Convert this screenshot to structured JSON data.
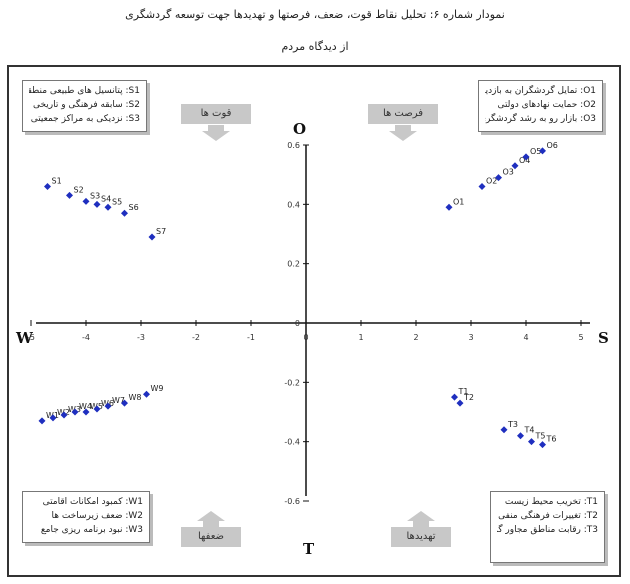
{
  "title_line1": "نمودار شماره ۶: تحلیل نقاط قوت، ضعف، فرصتها و تهدیدها جهت توسعه گردشگری",
  "title_line2": "از دیدگاه مردم",
  "chart_data": {
    "type": "scatter",
    "xlim": [
      -6,
      6
    ],
    "ylim": [
      -0.6,
      0.6
    ],
    "x_ticks": [
      "-5",
      "-4",
      "-3",
      "-2",
      "-1",
      "0",
      "1",
      "2",
      "3",
      "4",
      "5"
    ],
    "y_ticks": [
      "0.6",
      "0.4",
      "0.2",
      "0",
      "-0.2",
      "-0.4",
      "-0.6"
    ],
    "axis_letters": {
      "left": "W",
      "right": "S",
      "top": "O",
      "bottom": "T"
    },
    "quadrant_labels": {
      "strengths": "قوت ها",
      "opportunities": "فرصت ها",
      "weaknesses": "ضعفها",
      "threats": "تهدیدها"
    },
    "series": [
      {
        "name": "strengths",
        "color": "#1f2fbf",
        "points": [
          {
            "x": -4.7,
            "y": 0.46,
            "label": "S1"
          },
          {
            "x": -4.3,
            "y": 0.43,
            "label": "S2"
          },
          {
            "x": -4.0,
            "y": 0.41,
            "label": "S3"
          },
          {
            "x": -3.8,
            "y": 0.4,
            "label": "S4"
          },
          {
            "x": -3.6,
            "y": 0.39,
            "label": "S5"
          },
          {
            "x": -3.3,
            "y": 0.37,
            "label": "S6"
          },
          {
            "x": -2.8,
            "y": 0.29,
            "label": "S7"
          }
        ]
      },
      {
        "name": "opportunities",
        "color": "#1f2fbf",
        "points": [
          {
            "x": 2.6,
            "y": 0.39,
            "label": "O1"
          },
          {
            "x": 3.2,
            "y": 0.46,
            "label": "O2"
          },
          {
            "x": 3.5,
            "y": 0.49,
            "label": "O3"
          },
          {
            "x": 3.8,
            "y": 0.53,
            "label": "O4"
          },
          {
            "x": 4.0,
            "y": 0.56,
            "label": "O5"
          },
          {
            "x": 4.3,
            "y": 0.58,
            "label": "O6"
          }
        ]
      },
      {
        "name": "weaknesses",
        "color": "#1f2fbf",
        "points": [
          {
            "x": -4.8,
            "y": -0.33,
            "label": "W1"
          },
          {
            "x": -4.6,
            "y": -0.32,
            "label": "W2"
          },
          {
            "x": -4.4,
            "y": -0.31,
            "label": "W3"
          },
          {
            "x": -4.2,
            "y": -0.3,
            "label": "W4"
          },
          {
            "x": -4.0,
            "y": -0.3,
            "label": "W5"
          },
          {
            "x": -3.8,
            "y": -0.29,
            "label": "W6"
          },
          {
            "x": -3.6,
            "y": -0.28,
            "label": "W7"
          },
          {
            "x": -3.3,
            "y": -0.27,
            "label": "W8"
          },
          {
            "x": -2.9,
            "y": -0.24,
            "label": "W9"
          }
        ]
      },
      {
        "name": "threats",
        "color": "#1f2fbf",
        "points": [
          {
            "x": 2.7,
            "y": -0.25,
            "label": "T1"
          },
          {
            "x": 2.8,
            "y": -0.27,
            "label": "T2"
          },
          {
            "x": 3.6,
            "y": -0.36,
            "label": "T3"
          },
          {
            "x": 3.9,
            "y": -0.38,
            "label": "T4"
          },
          {
            "x": 4.1,
            "y": -0.4,
            "label": "T5"
          },
          {
            "x": 4.3,
            "y": -0.41,
            "label": "T6"
          }
        ]
      }
    ]
  },
  "legends": {
    "strengths": [
      "S1: پتانسیل های طبیعی منطقه",
      "S2: سابقه فرهنگی و تاریخی",
      "S3: نزدیکی به مراکز جمعیتی"
    ],
    "opportunities": [
      "O1: تمایل گردشگران به بازدید",
      "O2: حمایت نهادهای دولتی",
      "O3: بازار رو به رشد گردشگری"
    ],
    "weaknesses": [
      "W1: کمبود امکانات اقامتی",
      "W2: ضعف زیرساخت ها",
      "W3: نبود برنامه ریزی جامع"
    ],
    "threats": [
      "T1: تخریب محیط زیست",
      "T2: تغییرات فرهنگی منفی",
      "T3: رقابت مناطق مجاور گردشگری"
    ]
  }
}
